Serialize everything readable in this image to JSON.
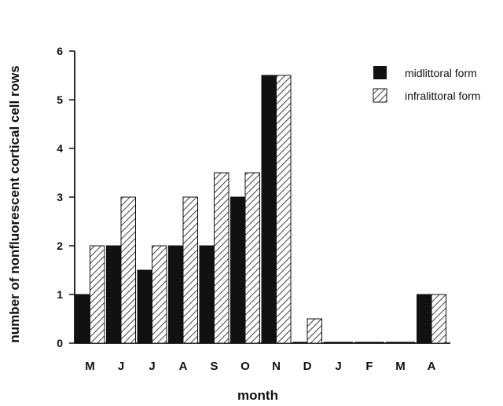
{
  "chart_data": {
    "type": "bar",
    "categories": [
      "M",
      "J",
      "J",
      "A",
      "S",
      "O",
      "N",
      "D",
      "J",
      "F",
      "M",
      "A"
    ],
    "series": [
      {
        "name": "midlittoral form",
        "values": [
          1,
          2,
          1.5,
          2,
          2,
          3,
          5.5,
          0,
          0,
          0,
          0,
          1
        ],
        "fill": "#111111"
      },
      {
        "name": "infralittoral form",
        "values": [
          2,
          3,
          2,
          3,
          3.5,
          3.5,
          5.5,
          0.5,
          0,
          0,
          0,
          1
        ],
        "fill": "hatched"
      }
    ],
    "title": "",
    "xlabel": "month",
    "ylabel": "number of nonfluorescent cortical cell rows",
    "ylim": [
      0,
      6
    ],
    "yticks": [
      0,
      1,
      2,
      3,
      4,
      5,
      6
    ],
    "grid": false,
    "legend_position": "top-right"
  }
}
